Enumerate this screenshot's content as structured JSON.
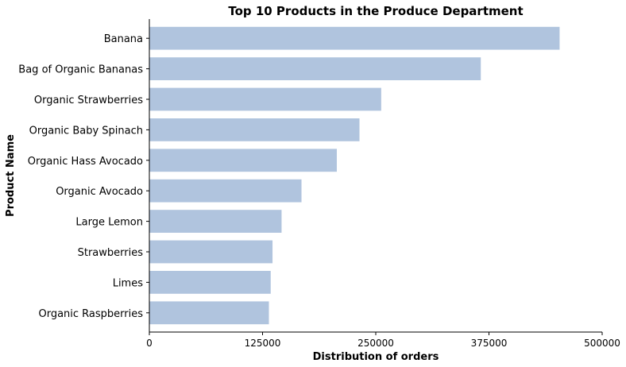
{
  "chart_data": {
    "type": "bar",
    "orientation": "horizontal",
    "title": "Top 10 Products in the Produce Department",
    "xlabel": "Distribution of orders",
    "ylabel": "Product Name",
    "categories": [
      "Banana",
      "Bag of Organic Bananas",
      "Organic Strawberries",
      "Organic Baby Spinach",
      "Organic Hass Avocado",
      "Organic Avocado",
      "Large Lemon",
      "Strawberries",
      "Limes",
      "Organic Raspberries"
    ],
    "values": [
      453000,
      366000,
      256000,
      232000,
      207000,
      168000,
      146000,
      136000,
      134000,
      132000
    ],
    "xlim": [
      0,
      500000
    ],
    "xticks": [
      0,
      125000,
      250000,
      375000,
      500000
    ],
    "xtick_labels": [
      "0",
      "125000",
      "250000",
      "375000",
      "500000"
    ],
    "bar_color": "#b0c4de",
    "grid": false,
    "legend": "none"
  }
}
